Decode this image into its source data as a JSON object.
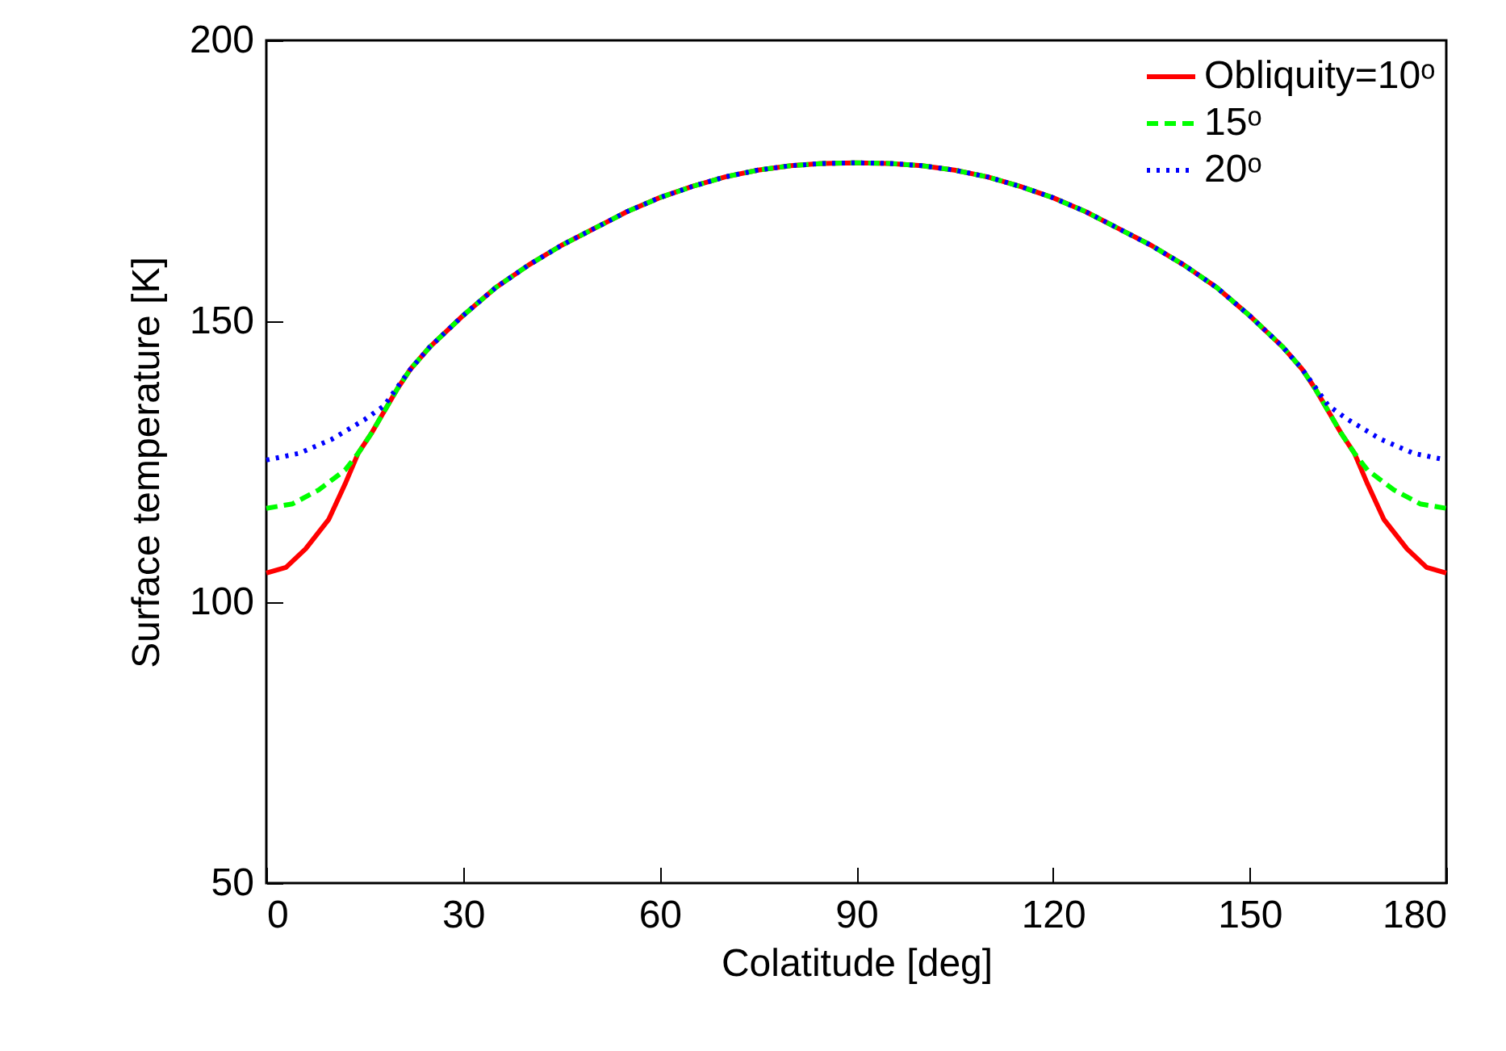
{
  "chart_data": {
    "type": "line",
    "xlabel": "Colatitude [deg]",
    "ylabel": "Surface temperature [K]",
    "xlim": [
      0,
      180
    ],
    "xticks": [
      0,
      30,
      60,
      90,
      120,
      150,
      180
    ],
    "ylim": [
      50,
      200
    ],
    "yticks": [
      50,
      100,
      150,
      200
    ],
    "grid": false,
    "legend": "top right",
    "series": [
      {
        "name": "Obliquity=10ᵒ",
        "color": "#ff0000",
        "line_style": "solid",
        "x": [
          0,
          3,
          6,
          9.5,
          12,
          14,
          16,
          18,
          20,
          22,
          25,
          30,
          35,
          40,
          45,
          50,
          55,
          60,
          65,
          70,
          75,
          80,
          85,
          90,
          95,
          100,
          105,
          110,
          115,
          120,
          125,
          130,
          135,
          140,
          145,
          150,
          155,
          158,
          160,
          162,
          164,
          166,
          168,
          170.5,
          174,
          177,
          180
        ],
        "values": [
          105.2,
          106.2,
          109.5,
          114.7,
          121,
          126.5,
          130,
          134,
          138,
          141.5,
          145.5,
          151,
          156,
          160,
          163.5,
          166.5,
          169.5,
          172,
          174,
          175.7,
          176.9,
          177.7,
          178.1,
          178.2,
          178.1,
          177.7,
          176.9,
          175.7,
          174,
          172,
          169.5,
          166.5,
          163.5,
          160,
          156,
          151,
          145.5,
          141.5,
          138,
          134,
          130,
          126.5,
          121,
          114.7,
          109.5,
          106.2,
          105.2
        ]
      },
      {
        "name": "15ᵒ",
        "color": "#00ff00",
        "line_style": "dashed",
        "x": [
          0,
          4,
          8,
          12,
          14,
          16,
          18,
          20,
          22,
          25,
          30,
          35,
          40,
          45,
          50,
          55,
          60,
          65,
          70,
          75,
          80,
          85,
          90,
          95,
          100,
          105,
          110,
          115,
          120,
          125,
          130,
          135,
          140,
          145,
          150,
          155,
          158,
          160,
          162,
          164,
          166,
          168,
          172,
          176,
          180
        ],
        "values": [
          116.7,
          117.5,
          120,
          123.5,
          126.5,
          130,
          134,
          138,
          141.5,
          145.5,
          151,
          156,
          160,
          163.5,
          166.5,
          169.5,
          172,
          174,
          175.7,
          176.9,
          177.7,
          178.1,
          178.2,
          178.1,
          177.7,
          176.9,
          175.7,
          174,
          172,
          169.5,
          166.5,
          163.5,
          160,
          156,
          151,
          145.5,
          141.5,
          138,
          134,
          130,
          126.5,
          123.5,
          120,
          117.5,
          116.7
        ]
      },
      {
        "name": "20ᵒ",
        "color": "#0000ff",
        "line_style": "dotted",
        "x": [
          0,
          5,
          10,
          15,
          18,
          20,
          22,
          25,
          30,
          35,
          40,
          45,
          50,
          55,
          60,
          65,
          70,
          75,
          80,
          85,
          90,
          95,
          100,
          105,
          110,
          115,
          120,
          125,
          130,
          135,
          140,
          145,
          150,
          155,
          158,
          160,
          162,
          165,
          170,
          175,
          180
        ],
        "values": [
          125.3,
          126.5,
          129,
          132.5,
          135,
          138.3,
          141.5,
          145.5,
          151,
          156,
          160,
          163.5,
          166.5,
          169.5,
          172,
          174,
          175.7,
          176.9,
          177.7,
          178.1,
          178.2,
          178.1,
          177.7,
          176.9,
          175.7,
          174,
          172,
          169.5,
          166.5,
          163.5,
          160,
          156,
          151,
          145.5,
          141.5,
          138.3,
          135,
          132.5,
          129,
          126.5,
          125.3
        ]
      }
    ]
  }
}
